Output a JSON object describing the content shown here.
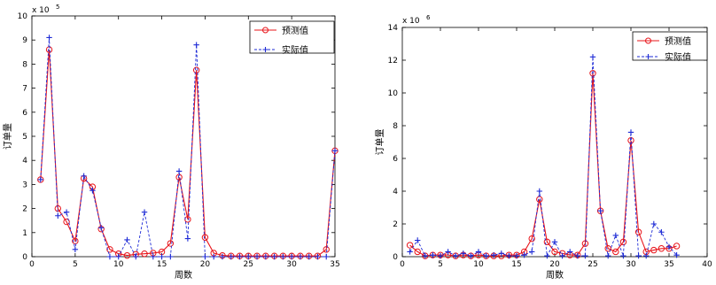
{
  "chart_data": [
    {
      "type": "line",
      "title": "",
      "xlabel": "周数",
      "ylabel": "订单量",
      "exponent_label": "x 10",
      "exponent_power": "5",
      "scale": 100000,
      "xlim": [
        0,
        35
      ],
      "ylim": [
        0,
        10
      ],
      "xticks": [
        0,
        5,
        10,
        15,
        20,
        25,
        30,
        35
      ],
      "yticks": [
        0,
        1,
        2,
        3,
        4,
        5,
        6,
        7,
        8,
        9,
        10
      ],
      "grid": false,
      "legend_position": "top-right",
      "x": [
        1,
        2,
        3,
        4,
        5,
        6,
        7,
        8,
        9,
        10,
        11,
        12,
        13,
        14,
        15,
        16,
        17,
        18,
        19,
        20,
        21,
        22,
        23,
        24,
        25,
        26,
        27,
        28,
        29,
        30,
        31,
        32,
        33,
        34,
        35
      ],
      "series": [
        {
          "name": "预测值",
          "color": "#e8141a",
          "style": "solid-circle",
          "values": [
            3.2,
            8.6,
            2.0,
            1.45,
            0.65,
            3.25,
            2.9,
            1.15,
            0.3,
            0.12,
            0.05,
            0.1,
            0.12,
            0.15,
            0.2,
            0.55,
            3.3,
            1.55,
            7.75,
            0.8,
            0.15,
            0.05,
            0.03,
            0.03,
            0.03,
            0.03,
            0.03,
            0.03,
            0.03,
            0.03,
            0.03,
            0.03,
            0.03,
            0.3,
            4.4
          ]
        },
        {
          "name": "实际值",
          "color": "#1e2bd6",
          "style": "dashed-plus",
          "values": [
            3.2,
            9.1,
            1.7,
            1.85,
            0.3,
            3.35,
            2.75,
            1.2,
            0.0,
            0.0,
            0.7,
            0.0,
            1.85,
            0.0,
            0.0,
            0.0,
            3.55,
            0.75,
            8.8,
            0.0,
            0.0,
            0.0,
            0.0,
            0.0,
            0.0,
            0.0,
            0.0,
            0.0,
            0.0,
            0.0,
            0.0,
            0.0,
            0.0,
            0.0,
            4.4
          ]
        }
      ]
    },
    {
      "type": "line",
      "title": "",
      "xlabel": "周数",
      "ylabel": "订单量",
      "exponent_label": "x 10",
      "exponent_power": "6",
      "scale": 1000000,
      "xlim": [
        0,
        40
      ],
      "ylim": [
        0,
        14
      ],
      "xticks": [
        0,
        5,
        10,
        15,
        20,
        25,
        30,
        35,
        40
      ],
      "yticks": [
        0,
        2,
        4,
        6,
        8,
        10,
        12,
        14
      ],
      "grid": false,
      "legend_position": "top-right",
      "x": [
        1,
        2,
        3,
        4,
        5,
        6,
        7,
        8,
        9,
        10,
        11,
        12,
        13,
        14,
        15,
        16,
        17,
        18,
        19,
        20,
        21,
        22,
        23,
        24,
        25,
        26,
        27,
        28,
        29,
        30,
        31,
        32,
        33,
        34,
        35,
        36
      ],
      "series": [
        {
          "name": "预测值",
          "color": "#e8141a",
          "style": "solid-circle",
          "values": [
            0.7,
            0.3,
            0.05,
            0.1,
            0.1,
            0.1,
            0.05,
            0.1,
            0.05,
            0.1,
            0.05,
            0.05,
            0.05,
            0.1,
            0.1,
            0.3,
            1.1,
            3.5,
            0.9,
            0.3,
            0.2,
            0.1,
            0.1,
            0.8,
            11.2,
            2.8,
            0.5,
            0.3,
            0.9,
            7.1,
            1.5,
            0.3,
            0.4,
            0.5,
            0.5,
            0.65
          ]
        },
        {
          "name": "实际值",
          "color": "#1e2bd6",
          "style": "dashed-plus",
          "values": [
            0.3,
            1.0,
            0.05,
            0.1,
            0.05,
            0.3,
            0.05,
            0.2,
            0.05,
            0.3,
            0.05,
            0.1,
            0.2,
            0.05,
            0.05,
            0.1,
            0.3,
            4.0,
            0.05,
            0.9,
            0.05,
            0.3,
            0.05,
            0.05,
            12.2,
            2.8,
            0.05,
            1.3,
            0.05,
            7.6,
            0.05,
            0.05,
            2.0,
            1.5,
            0.6,
            0.1
          ]
        }
      ]
    }
  ]
}
